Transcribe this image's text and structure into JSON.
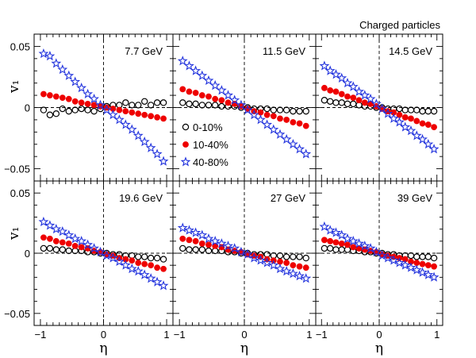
{
  "figure_label": "Charged particles",
  "chart_data": [
    {
      "type": "scatter",
      "label": "7.7 GeV",
      "xlabel": "η",
      "ylabel": "v₁",
      "xlim": [
        -1.1,
        1.1
      ],
      "ylim": [
        -0.06,
        0.06
      ],
      "xticks": [
        "−1",
        "0",
        "1"
      ],
      "yticks": [
        "0.05",
        "0",
        "−0.05"
      ],
      "series": [
        {
          "name": "0-10%",
          "x": [
            -0.95,
            -0.85,
            -0.75,
            -0.65,
            -0.55,
            -0.45,
            -0.35,
            -0.25,
            -0.15,
            -0.05,
            0.05,
            0.15,
            0.25,
            0.35,
            0.45,
            0.55,
            0.65,
            0.75,
            0.85,
            0.95
          ],
          "y": [
            -0.002,
            -0.006,
            -0.005,
            -0.001,
            -0.003,
            -0.002,
            -0.001,
            -0.002,
            -0.003,
            -0.001,
            0.001,
            0.002,
            0.002,
            0.004,
            0.002,
            0.002,
            0.005,
            0.002,
            0.004,
            0.004
          ]
        },
        {
          "name": "10-40%",
          "x": [
            -0.95,
            -0.85,
            -0.75,
            -0.65,
            -0.55,
            -0.45,
            -0.35,
            -0.25,
            -0.15,
            -0.05,
            0.05,
            0.15,
            0.25,
            0.35,
            0.45,
            0.55,
            0.65,
            0.75,
            0.85,
            0.95
          ],
          "y": [
            0.011,
            0.01,
            0.009,
            0.008,
            0.007,
            0.005,
            0.004,
            0.003,
            0.002,
            0.001,
            0.0,
            -0.001,
            -0.002,
            -0.003,
            -0.004,
            -0.005,
            -0.006,
            -0.007,
            -0.008,
            -0.009
          ]
        },
        {
          "name": "40-80%",
          "x": [
            -0.95,
            -0.85,
            -0.75,
            -0.65,
            -0.55,
            -0.45,
            -0.35,
            -0.25,
            -0.15,
            -0.05,
            0.05,
            0.15,
            0.25,
            0.35,
            0.45,
            0.55,
            0.65,
            0.75,
            0.85,
            0.95
          ],
          "y": [
            0.044,
            0.042,
            0.036,
            0.031,
            0.026,
            0.021,
            0.016,
            0.011,
            0.007,
            0.002,
            -0.002,
            -0.006,
            -0.01,
            -0.014,
            -0.018,
            -0.023,
            -0.028,
            -0.033,
            -0.038,
            -0.044
          ]
        }
      ]
    },
    {
      "type": "scatter",
      "label": "11.5 GeV",
      "xlabel": "η",
      "ylabel": "v₁",
      "xlim": [
        -1.1,
        1.1
      ],
      "ylim": [
        -0.06,
        0.06
      ],
      "xticks": [
        "−1",
        "0",
        "1"
      ],
      "yticks": [
        "0.05",
        "0",
        "−0.05"
      ],
      "series": [
        {
          "name": "0-10%",
          "x": [
            -0.95,
            -0.85,
            -0.75,
            -0.65,
            -0.55,
            -0.45,
            -0.35,
            -0.25,
            -0.15,
            -0.05,
            0.05,
            0.15,
            0.25,
            0.35,
            0.45,
            0.55,
            0.65,
            0.75,
            0.85,
            0.95
          ],
          "y": [
            0.004,
            0.003,
            0.003,
            0.002,
            0.002,
            0.002,
            0.001,
            0.001,
            0.001,
            0.0,
            0.0,
            -0.001,
            -0.001,
            -0.001,
            -0.002,
            -0.002,
            -0.002,
            -0.003,
            -0.003,
            -0.003
          ]
        },
        {
          "name": "10-40%",
          "x": [
            -0.95,
            -0.85,
            -0.75,
            -0.65,
            -0.55,
            -0.45,
            -0.35,
            -0.25,
            -0.15,
            -0.05,
            0.05,
            0.15,
            0.25,
            0.35,
            0.45,
            0.55,
            0.65,
            0.75,
            0.85,
            0.95
          ],
          "y": [
            0.015,
            0.013,
            0.012,
            0.01,
            0.009,
            0.007,
            0.006,
            0.004,
            0.003,
            0.001,
            -0.001,
            -0.003,
            -0.004,
            -0.006,
            -0.007,
            -0.009,
            -0.01,
            -0.012,
            -0.013,
            -0.015
          ]
        },
        {
          "name": "40-80%",
          "x": [
            -0.95,
            -0.85,
            -0.75,
            -0.65,
            -0.55,
            -0.45,
            -0.35,
            -0.25,
            -0.15,
            -0.05,
            0.05,
            0.15,
            0.25,
            0.35,
            0.45,
            0.55,
            0.65,
            0.75,
            0.85,
            0.95
          ],
          "y": [
            0.038,
            0.034,
            0.03,
            0.026,
            0.022,
            0.018,
            0.014,
            0.01,
            0.006,
            0.002,
            -0.002,
            -0.006,
            -0.01,
            -0.014,
            -0.018,
            -0.022,
            -0.026,
            -0.03,
            -0.034,
            -0.038
          ]
        }
      ]
    },
    {
      "type": "scatter",
      "label": "14.5 GeV",
      "xlabel": "η",
      "ylabel": "v₁",
      "xlim": [
        -1.1,
        1.1
      ],
      "ylim": [
        -0.06,
        0.06
      ],
      "xticks": [
        "−1",
        "0",
        "1"
      ],
      "yticks": [
        "0.05",
        "0",
        "−0.05"
      ],
      "series": [
        {
          "name": "0-10%",
          "x": [
            -0.95,
            -0.85,
            -0.75,
            -0.65,
            -0.55,
            -0.45,
            -0.35,
            -0.25,
            -0.15,
            -0.05,
            0.05,
            0.15,
            0.25,
            0.35,
            0.45,
            0.55,
            0.65,
            0.75,
            0.85,
            0.95
          ],
          "y": [
            0.006,
            0.005,
            0.004,
            0.004,
            0.003,
            0.003,
            0.002,
            0.001,
            0.001,
            0.0,
            0.0,
            -0.001,
            -0.001,
            -0.001,
            -0.002,
            -0.002,
            -0.002,
            -0.003,
            -0.003,
            -0.003
          ]
        },
        {
          "name": "10-40%",
          "x": [
            -0.95,
            -0.85,
            -0.75,
            -0.65,
            -0.55,
            -0.45,
            -0.35,
            -0.25,
            -0.15,
            -0.05,
            0.05,
            0.15,
            0.25,
            0.35,
            0.45,
            0.55,
            0.65,
            0.75,
            0.85,
            0.95
          ],
          "y": [
            0.016,
            0.014,
            0.013,
            0.011,
            0.009,
            0.008,
            0.006,
            0.004,
            0.003,
            0.001,
            -0.001,
            -0.003,
            -0.004,
            -0.006,
            -0.008,
            -0.009,
            -0.011,
            -0.013,
            -0.014,
            -0.016
          ]
        },
        {
          "name": "40-80%",
          "x": [
            -0.95,
            -0.85,
            -0.75,
            -0.65,
            -0.55,
            -0.45,
            -0.35,
            -0.25,
            -0.15,
            -0.05,
            0.05,
            0.15,
            0.25,
            0.35,
            0.45,
            0.55,
            0.65,
            0.75,
            0.85,
            0.95
          ],
          "y": [
            0.034,
            0.03,
            0.027,
            0.024,
            0.02,
            0.017,
            0.013,
            0.01,
            0.007,
            0.003,
            -0.001,
            -0.005,
            -0.009,
            -0.012,
            -0.016,
            -0.019,
            -0.023,
            -0.026,
            -0.03,
            -0.034
          ]
        }
      ]
    },
    {
      "type": "scatter",
      "label": "19.6 GeV",
      "xlabel": "η",
      "ylabel": "v₁",
      "xlim": [
        -1.1,
        1.1
      ],
      "ylim": [
        -0.06,
        0.06
      ],
      "xticks": [
        "−1",
        "0",
        "1"
      ],
      "yticks": [
        "0.05",
        "0",
        "−0.05"
      ],
      "series": [
        {
          "name": "0-10%",
          "x": [
            -0.95,
            -0.85,
            -0.75,
            -0.65,
            -0.55,
            -0.45,
            -0.35,
            -0.25,
            -0.15,
            -0.05,
            0.05,
            0.15,
            0.25,
            0.35,
            0.45,
            0.55,
            0.65,
            0.75,
            0.85,
            0.95
          ],
          "y": [
            0.004,
            0.004,
            0.003,
            0.003,
            0.002,
            0.002,
            0.002,
            0.001,
            0.001,
            0.0,
            0.0,
            -0.001,
            -0.001,
            -0.002,
            -0.002,
            -0.003,
            -0.003,
            -0.004,
            -0.004,
            -0.005
          ]
        },
        {
          "name": "10-40%",
          "x": [
            -0.95,
            -0.85,
            -0.75,
            -0.65,
            -0.55,
            -0.45,
            -0.35,
            -0.25,
            -0.15,
            -0.05,
            0.05,
            0.15,
            0.25,
            0.35,
            0.45,
            0.55,
            0.65,
            0.75,
            0.85,
            0.95
          ],
          "y": [
            0.013,
            0.012,
            0.01,
            0.009,
            0.008,
            0.006,
            0.005,
            0.004,
            0.002,
            0.001,
            -0.001,
            -0.002,
            -0.004,
            -0.005,
            -0.006,
            -0.008,
            -0.009,
            -0.01,
            -0.012,
            -0.013
          ]
        },
        {
          "name": "40-80%",
          "x": [
            -0.95,
            -0.85,
            -0.75,
            -0.65,
            -0.55,
            -0.45,
            -0.35,
            -0.25,
            -0.15,
            -0.05,
            0.05,
            0.15,
            0.25,
            0.35,
            0.45,
            0.55,
            0.65,
            0.75,
            0.85,
            0.95
          ],
          "y": [
            0.026,
            0.023,
            0.02,
            0.018,
            0.015,
            0.012,
            0.01,
            0.007,
            0.004,
            0.001,
            -0.002,
            -0.004,
            -0.007,
            -0.01,
            -0.013,
            -0.015,
            -0.018,
            -0.021,
            -0.024,
            -0.027
          ]
        }
      ]
    },
    {
      "type": "scatter",
      "label": "27 GeV",
      "xlabel": "η",
      "ylabel": "v₁",
      "xlim": [
        -1.1,
        1.1
      ],
      "ylim": [
        -0.06,
        0.06
      ],
      "xticks": [
        "−1",
        "0",
        "1"
      ],
      "yticks": [
        "0.05",
        "0",
        "−0.05"
      ],
      "series": [
        {
          "name": "0-10%",
          "x": [
            -0.95,
            -0.85,
            -0.75,
            -0.65,
            -0.55,
            -0.45,
            -0.35,
            -0.25,
            -0.15,
            -0.05,
            0.05,
            0.15,
            0.25,
            0.35,
            0.45,
            0.55,
            0.65,
            0.75,
            0.85,
            0.95
          ],
          "y": [
            0.004,
            0.003,
            0.003,
            0.003,
            0.002,
            0.002,
            0.002,
            0.001,
            0.001,
            0.0,
            0.0,
            -0.001,
            -0.001,
            -0.001,
            -0.002,
            -0.002,
            -0.003,
            -0.003,
            -0.003,
            -0.004
          ]
        },
        {
          "name": "10-40%",
          "x": [
            -0.95,
            -0.85,
            -0.75,
            -0.65,
            -0.55,
            -0.45,
            -0.35,
            -0.25,
            -0.15,
            -0.05,
            0.05,
            0.15,
            0.25,
            0.35,
            0.45,
            0.55,
            0.65,
            0.75,
            0.85,
            0.95
          ],
          "y": [
            0.012,
            0.011,
            0.01,
            0.008,
            0.007,
            0.006,
            0.005,
            0.003,
            0.002,
            0.001,
            -0.001,
            -0.002,
            -0.003,
            -0.005,
            -0.006,
            -0.007,
            -0.008,
            -0.01,
            -0.011,
            -0.012
          ]
        },
        {
          "name": "40-80%",
          "x": [
            -0.95,
            -0.85,
            -0.75,
            -0.65,
            -0.55,
            -0.45,
            -0.35,
            -0.25,
            -0.15,
            -0.05,
            0.05,
            0.15,
            0.25,
            0.35,
            0.45,
            0.55,
            0.65,
            0.75,
            0.85,
            0.95
          ],
          "y": [
            0.021,
            0.019,
            0.017,
            0.015,
            0.012,
            0.01,
            0.008,
            0.006,
            0.004,
            0.001,
            -0.001,
            -0.004,
            -0.006,
            -0.008,
            -0.01,
            -0.013,
            -0.015,
            -0.017,
            -0.019,
            -0.021
          ]
        }
      ]
    },
    {
      "type": "scatter",
      "label": "39 GeV",
      "xlabel": "η",
      "ylabel": "v₁",
      "xlim": [
        -1.1,
        1.1
      ],
      "ylim": [
        -0.06,
        0.06
      ],
      "xticks": [
        "−1",
        "0",
        "1"
      ],
      "yticks": [
        "0.05",
        "0",
        "−0.05"
      ],
      "series": [
        {
          "name": "0-10%",
          "x": [
            -0.95,
            -0.85,
            -0.75,
            -0.65,
            -0.55,
            -0.45,
            -0.35,
            -0.25,
            -0.15,
            -0.05,
            0.05,
            0.15,
            0.25,
            0.35,
            0.45,
            0.55,
            0.65,
            0.75,
            0.85,
            0.95
          ],
          "y": [
            0.004,
            0.004,
            0.003,
            0.003,
            0.003,
            0.002,
            0.002,
            0.001,
            0.001,
            0.0,
            0.0,
            -0.001,
            -0.001,
            -0.002,
            -0.002,
            -0.002,
            -0.003,
            -0.003,
            -0.003,
            -0.004
          ]
        },
        {
          "name": "10-40%",
          "x": [
            -0.95,
            -0.85,
            -0.75,
            -0.65,
            -0.55,
            -0.45,
            -0.35,
            -0.25,
            -0.15,
            -0.05,
            0.05,
            0.15,
            0.25,
            0.35,
            0.45,
            0.55,
            0.65,
            0.75,
            0.85,
            0.95
          ],
          "y": [
            0.011,
            0.01,
            0.009,
            0.008,
            0.007,
            0.005,
            0.004,
            0.003,
            0.002,
            0.001,
            -0.001,
            -0.002,
            -0.003,
            -0.004,
            -0.005,
            -0.007,
            -0.008,
            -0.009,
            -0.01,
            -0.011
          ]
        },
        {
          "name": "40-80%",
          "x": [
            -0.95,
            -0.85,
            -0.75,
            -0.65,
            -0.55,
            -0.45,
            -0.35,
            -0.25,
            -0.15,
            -0.05,
            0.05,
            0.15,
            0.25,
            0.35,
            0.45,
            0.55,
            0.65,
            0.75,
            0.85,
            0.95
          ],
          "y": [
            0.022,
            0.019,
            0.017,
            0.015,
            0.012,
            0.01,
            0.008,
            0.006,
            0.004,
            0.001,
            -0.002,
            -0.004,
            -0.006,
            -0.008,
            -0.01,
            -0.012,
            -0.014,
            -0.016,
            -0.018,
            -0.02
          ]
        }
      ]
    }
  ],
  "legend": [
    {
      "label": "0-10%",
      "marker": "open-circle",
      "color": "#000000"
    },
    {
      "label": "10-40%",
      "marker": "filled-circle",
      "color": "#ee0000"
    },
    {
      "label": "40-80%",
      "marker": "open-star",
      "color": "#2233dd"
    }
  ]
}
